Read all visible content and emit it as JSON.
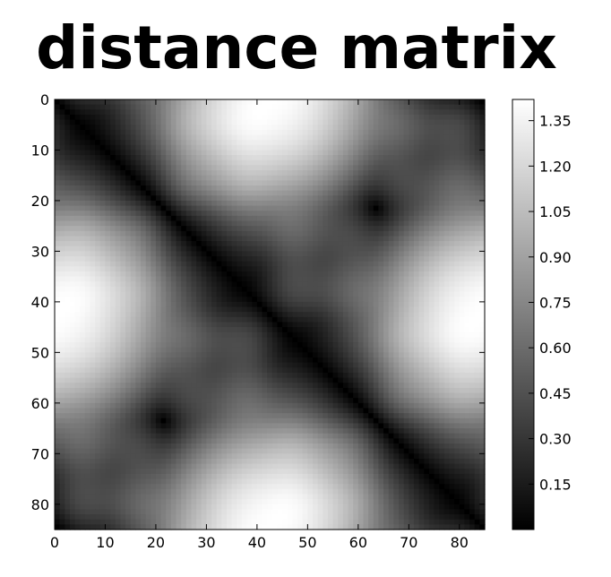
{
  "title": "distance matrix",
  "chart_data": {
    "type": "heatmap",
    "title": "distance matrix",
    "xlabel": "",
    "ylabel": "",
    "colormap": "gray",
    "grid_size": 85,
    "x_ticks": [
      0,
      10,
      20,
      30,
      40,
      50,
      60,
      70,
      80
    ],
    "y_ticks": [
      0,
      10,
      20,
      30,
      40,
      50,
      60,
      70,
      80
    ],
    "xlim": [
      0,
      85
    ],
    "ylim": [
      85,
      0
    ],
    "colorbar": {
      "ticks": [
        "0.15",
        "0.30",
        "0.45",
        "0.60",
        "0.75",
        "0.90",
        "1.05",
        "1.20",
        "1.35"
      ],
      "min": 0.0,
      "max": 1.42
    },
    "description_values": {
      "max_distance_approx": 1.42,
      "min_distance": 0.0
    }
  },
  "colors": {
    "background": "#ffffff",
    "axis": "#000000"
  }
}
